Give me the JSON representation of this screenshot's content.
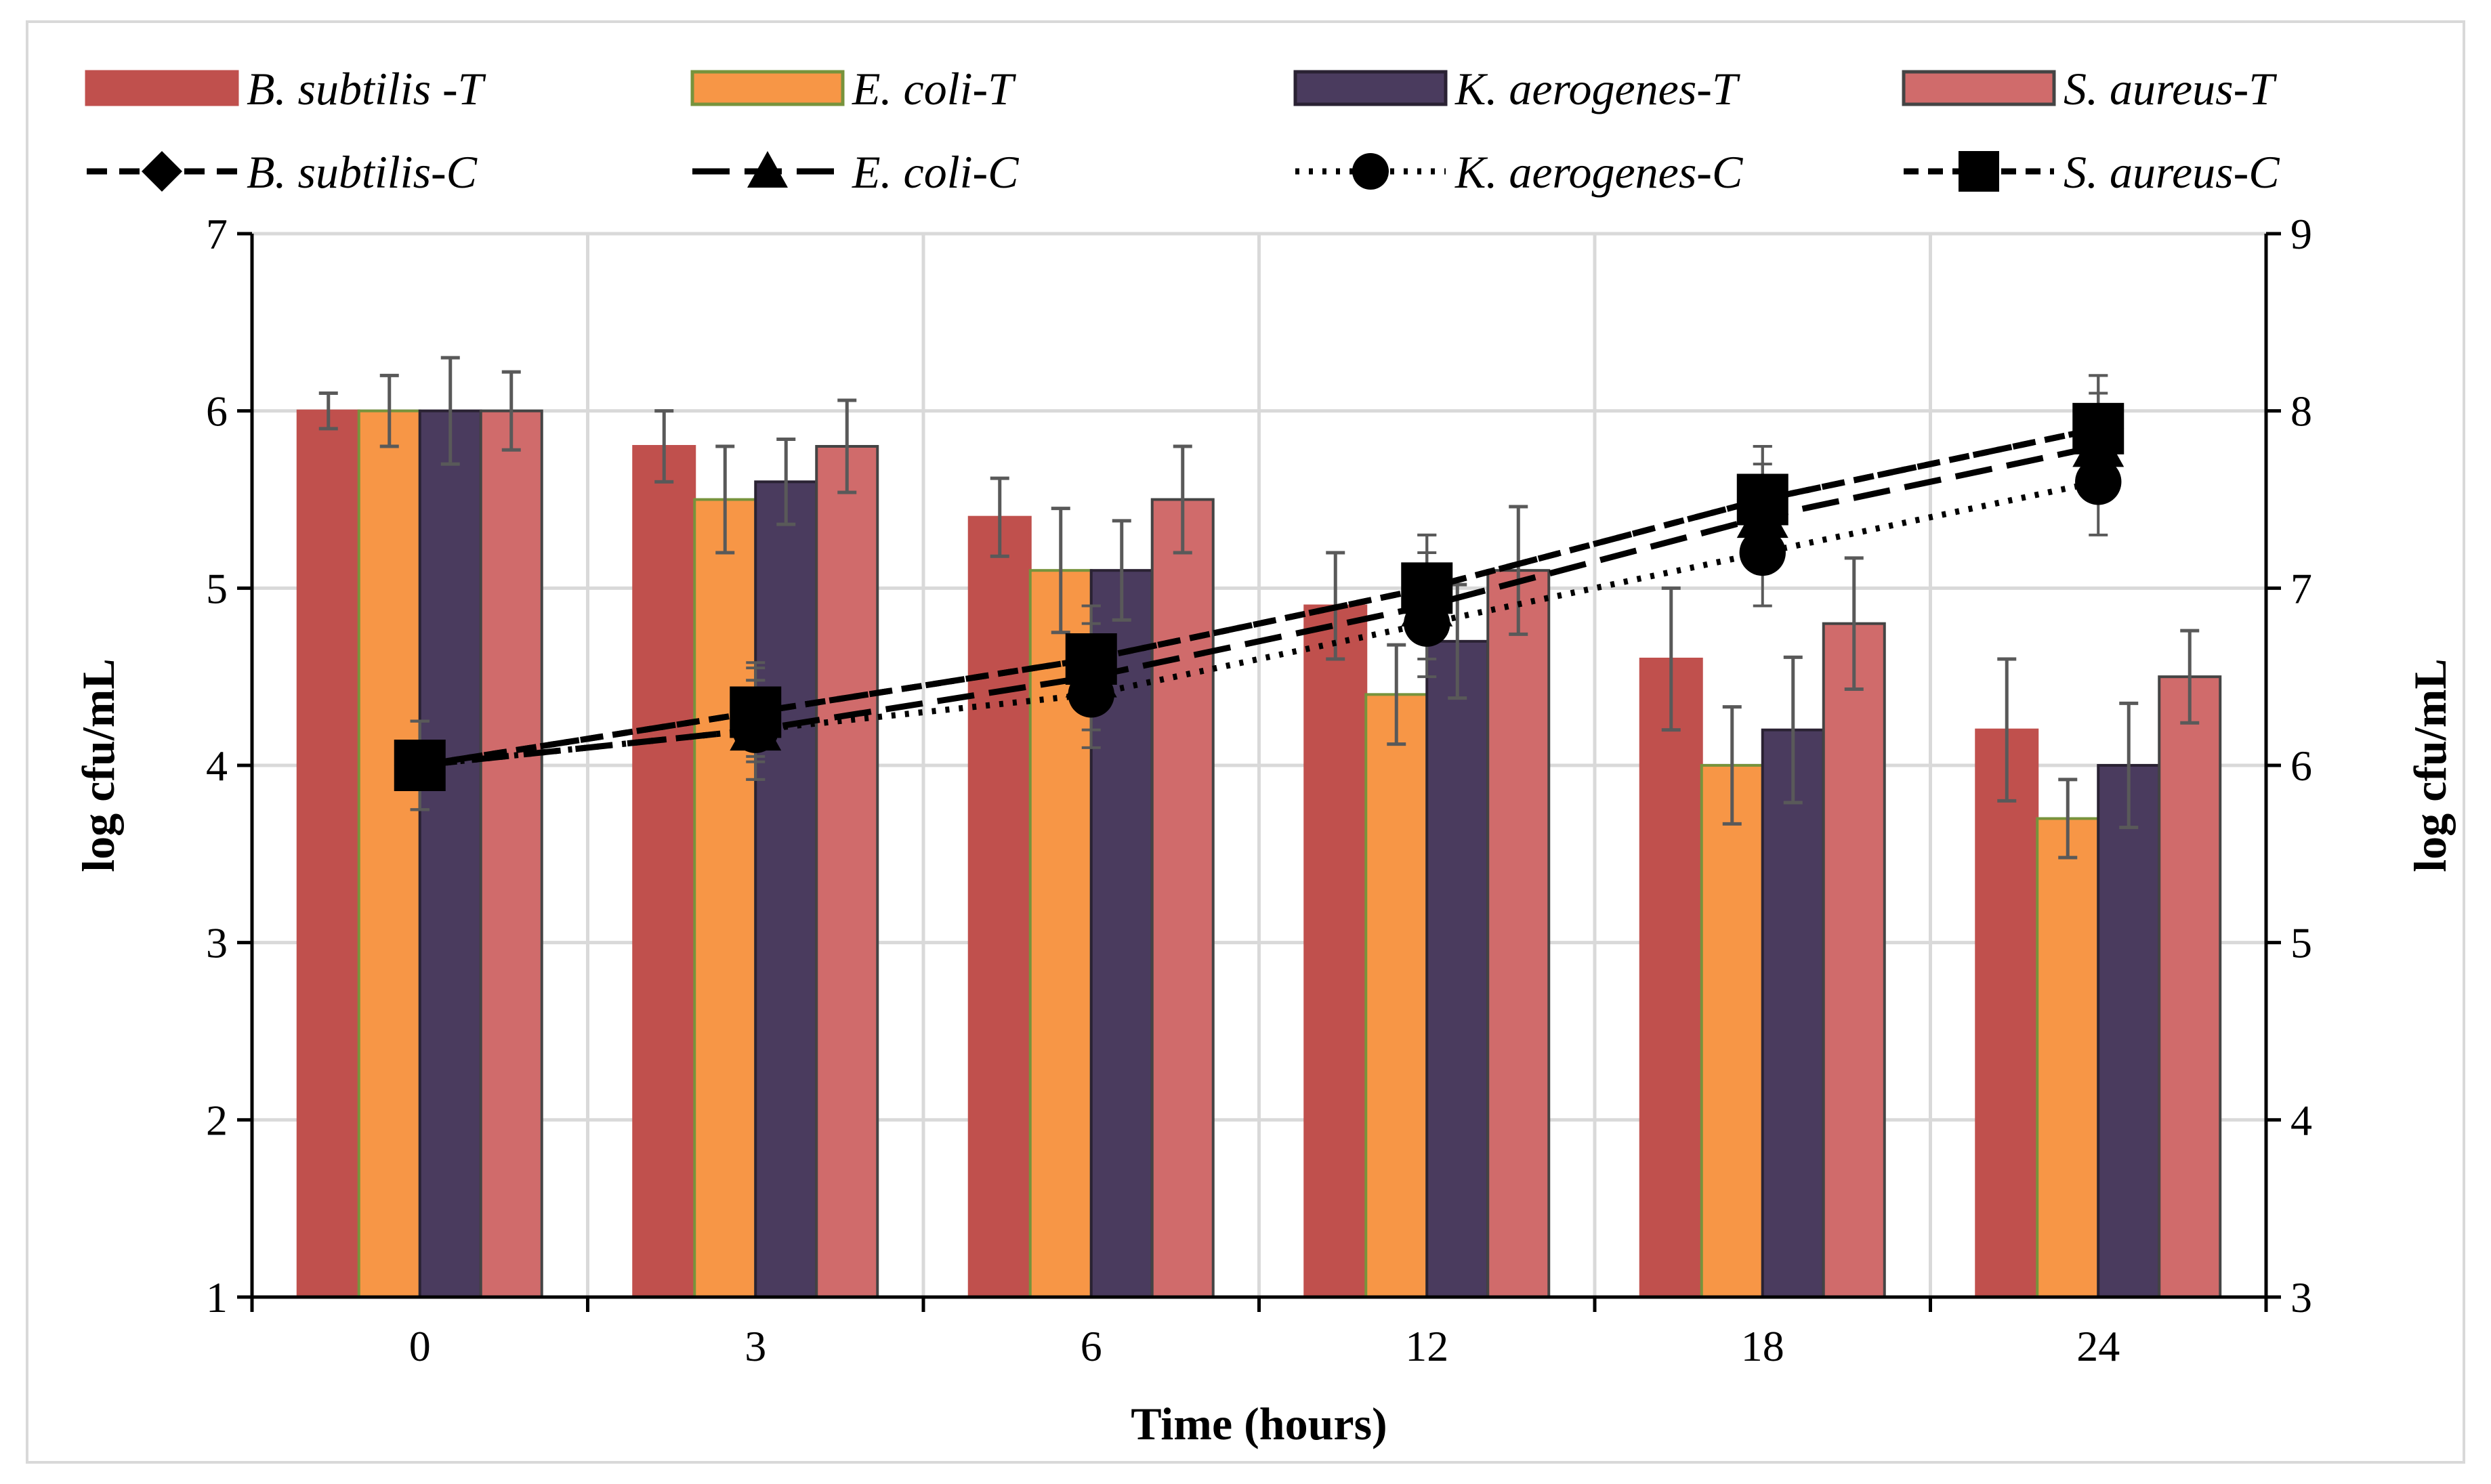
{
  "chart_data": {
    "type": "bar",
    "title": "",
    "xlabel": "Time (hours)",
    "ylabel": "log cfu/mL",
    "y2label": "log cfu/mL",
    "categories": [
      "0",
      "3",
      "6",
      "12",
      "18",
      "24"
    ],
    "ylim": [
      1,
      7
    ],
    "y2lim": [
      3,
      9
    ],
    "yticks": [
      "1",
      "2",
      "3",
      "4",
      "5",
      "6",
      "7"
    ],
    "y2ticks": [
      "3",
      "4",
      "5",
      "6",
      "7",
      "8",
      "9"
    ],
    "grid": true,
    "legend_position": "top",
    "bar_series": [
      {
        "name": "B. subtilis -T",
        "color": "#c0504d",
        "edge": "#c0504d",
        "values": [
          6.0,
          5.8,
          5.4,
          4.9,
          4.6,
          4.2
        ],
        "errors": [
          0.1,
          0.2,
          0.22,
          0.3,
          0.4,
          0.4
        ]
      },
      {
        "name": "E. coli-T",
        "color": "#f79646",
        "edge": "#77933c",
        "values": [
          6.0,
          5.5,
          5.1,
          4.4,
          4.0,
          3.7
        ],
        "errors": [
          0.2,
          0.3,
          0.35,
          0.28,
          0.33,
          0.22
        ]
      },
      {
        "name": "K. aerogenes-T",
        "color": "#4a3b5e",
        "edge": "#2a2233",
        "values": [
          6.0,
          5.6,
          5.1,
          4.7,
          4.2,
          4.0
        ],
        "errors": [
          0.3,
          0.24,
          0.28,
          0.32,
          0.41,
          0.35
        ]
      },
      {
        "name": "S. aureus-T",
        "color": "#d06b6b",
        "edge": "#444444",
        "values": [
          6.0,
          5.8,
          5.5,
          5.1,
          4.8,
          4.5
        ],
        "errors": [
          0.22,
          0.26,
          0.3,
          0.36,
          0.37,
          0.26
        ]
      }
    ],
    "line_series": [
      {
        "name": "B. subtilis-C",
        "marker": "diamond",
        "dash": "30,18",
        "values": [
          6.0,
          6.3,
          6.6,
          7.0,
          7.5,
          7.9
        ],
        "errors": [
          0.25,
          0.28,
          0.3,
          0.3,
          0.3,
          0.3
        ]
      },
      {
        "name": "E. coli-C",
        "marker": "triangle",
        "dash": "55,22",
        "values": [
          6.0,
          6.2,
          6.5,
          6.9,
          7.4,
          7.8
        ],
        "errors": [
          0.25,
          0.28,
          0.3,
          0.3,
          0.3,
          0.3
        ]
      },
      {
        "name": "K. aerogenes-C",
        "marker": "circle",
        "dash": "6,14",
        "values": [
          6.0,
          6.2,
          6.4,
          6.8,
          7.2,
          7.6
        ],
        "errors": [
          0.25,
          0.28,
          0.3,
          0.3,
          0.3,
          0.3
        ]
      },
      {
        "name": "S. aureus-C",
        "marker": "square",
        "dash": "22,14",
        "values": [
          6.0,
          6.3,
          6.6,
          7.0,
          7.5,
          7.9
        ],
        "errors": [
          0.25,
          0.25,
          0.3,
          0.3,
          0.3,
          0.3
        ]
      }
    ]
  }
}
